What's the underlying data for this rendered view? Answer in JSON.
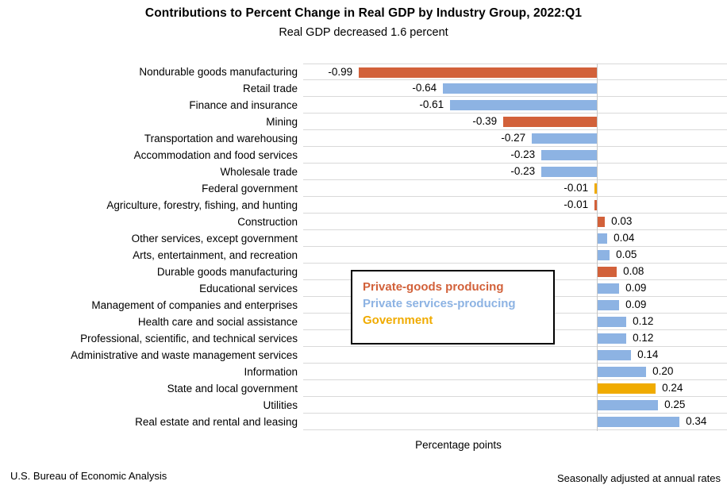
{
  "title": "Contributions to Percent Change in Real GDP by Industry Group, 2022:Q1",
  "subtitle": "Real GDP decreased 1.6 percent",
  "footer": {
    "source": "U.S. Bureau of Economic Analysis",
    "note": "Seasonally adjusted at annual rates"
  },
  "chart_data": {
    "type": "bar",
    "orientation": "horizontal",
    "title": "Contributions to Percent Change in Real GDP by Industry Group, 2022:Q1",
    "subtitle": "Real GDP decreased 1.6 percent",
    "xlabel": "Percentage points",
    "ylabel": "",
    "xlim": [
      -1.22,
      0.54
    ],
    "grid": "horizontal row separator lines only, vertical zero axis line",
    "legend_position": "overlay box center of plot",
    "gridline_color": "#d9d9d9",
    "zero_line_color": "#c6c6c6",
    "group_colors": {
      "private_goods": "#d2613a",
      "private_services": "#8db3e3",
      "government": "#f0ab00"
    },
    "legend": [
      {
        "label": "Private-goods producing",
        "group": "private_goods"
      },
      {
        "label": "Private services-producing",
        "group": "private_services"
      },
      {
        "label": "Government",
        "group": "government"
      }
    ],
    "items": [
      {
        "label": "Nondurable goods manufacturing",
        "value": -0.99,
        "group": "private_goods"
      },
      {
        "label": "Retail trade",
        "value": -0.64,
        "group": "private_services"
      },
      {
        "label": "Finance and insurance",
        "value": -0.61,
        "group": "private_services"
      },
      {
        "label": "Mining",
        "value": -0.39,
        "group": "private_goods"
      },
      {
        "label": "Transportation and warehousing",
        "value": -0.27,
        "group": "private_services"
      },
      {
        "label": "Accommodation and food services",
        "value": -0.23,
        "group": "private_services"
      },
      {
        "label": "Wholesale trade",
        "value": -0.23,
        "group": "private_services"
      },
      {
        "label": "Federal government",
        "value": -0.01,
        "group": "government"
      },
      {
        "label": "Agriculture, forestry, fishing, and hunting",
        "value": -0.01,
        "group": "private_goods"
      },
      {
        "label": "Construction",
        "value": 0.03,
        "group": "private_goods"
      },
      {
        "label": "Other services, except government",
        "value": 0.04,
        "group": "private_services"
      },
      {
        "label": "Arts, entertainment, and recreation",
        "value": 0.05,
        "group": "private_services"
      },
      {
        "label": "Durable goods manufacturing",
        "value": 0.08,
        "group": "private_goods"
      },
      {
        "label": "Educational services",
        "value": 0.09,
        "group": "private_services"
      },
      {
        "label": "Management of companies and enterprises",
        "value": 0.09,
        "group": "private_services"
      },
      {
        "label": "Health care and social assistance",
        "value": 0.12,
        "group": "private_services"
      },
      {
        "label": "Professional, scientific, and technical services",
        "value": 0.12,
        "group": "private_services"
      },
      {
        "label": "Administrative and waste management services",
        "value": 0.14,
        "group": "private_services"
      },
      {
        "label": "Information",
        "value": 0.2,
        "group": "private_services"
      },
      {
        "label": "State and local government",
        "value": 0.24,
        "group": "government"
      },
      {
        "label": "Utilities",
        "value": 0.25,
        "group": "private_services"
      },
      {
        "label": "Real estate and rental and leasing",
        "value": 0.34,
        "group": "private_services"
      }
    ]
  }
}
